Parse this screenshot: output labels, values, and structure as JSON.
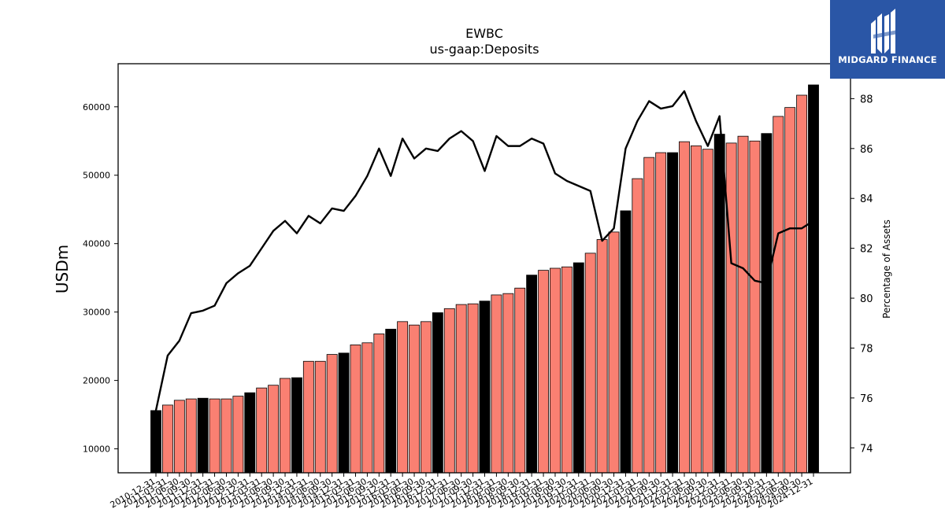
{
  "logo": {
    "text": "MIDGARD FINANCE",
    "color": "#2a56a6"
  },
  "chart_data": {
    "type": "bar",
    "title": "EWBC",
    "subtitle": "us-gaap:Deposits",
    "ylabel": "USDm",
    "y2label": "Percentage of Assets",
    "ylim": [
      6500,
      66300
    ],
    "y2lim": [
      73.0,
      89.4
    ],
    "yticks": [
      10000,
      20000,
      30000,
      40000,
      50000,
      60000
    ],
    "y2ticks": [
      74,
      76,
      78,
      80,
      82,
      84,
      86,
      88
    ],
    "colors": {
      "q4_bar": "#000000",
      "other_bar": "#fa8072",
      "line": "#000000"
    },
    "categories": [
      "2010-12-31",
      "2011-03-31",
      "2011-06-30",
      "2011-09-30",
      "2011-12-31",
      "2012-03-31",
      "2012-06-30",
      "2012-09-30",
      "2012-12-31",
      "2013-03-31",
      "2013-06-30",
      "2013-09-30",
      "2013-12-31",
      "2014-03-31",
      "2014-06-30",
      "2014-09-30",
      "2014-12-31",
      "2015-03-31",
      "2015-06-30",
      "2015-09-30",
      "2015-12-31",
      "2016-03-31",
      "2016-06-30",
      "2016-09-30",
      "2016-12-31",
      "2017-03-31",
      "2017-06-30",
      "2017-09-30",
      "2017-12-31",
      "2018-03-31",
      "2018-06-30",
      "2018-09-30",
      "2018-12-31",
      "2019-03-31",
      "2019-06-30",
      "2019-09-30",
      "2019-12-31",
      "2020-03-31",
      "2020-06-30",
      "2020-09-30",
      "2020-12-31",
      "2021-03-31",
      "2021-06-30",
      "2021-09-30",
      "2021-12-31",
      "2022-03-31",
      "2022-06-30",
      "2022-09-30",
      "2022-12-31",
      "2023-03-31",
      "2023-06-30",
      "2023-09-30",
      "2023-12-31",
      "2024-03-31",
      "2024-06-30",
      "2024-09-30",
      "2024-12-31"
    ],
    "series": [
      {
        "kind": "bar",
        "values": [
          15600,
          16400,
          17100,
          17300,
          17400,
          17300,
          17300,
          17700,
          18200,
          18900,
          19300,
          20300,
          20400,
          22800,
          22800,
          23800,
          24000,
          25200,
          25500,
          26800,
          27500,
          28600,
          28100,
          28600,
          29900,
          30500,
          31100,
          31200,
          31600,
          32500,
          32700,
          33500,
          35400,
          36100,
          36400,
          36600,
          37200,
          38600,
          40600,
          41700,
          44800,
          49500,
          52600,
          53300,
          53300,
          54900,
          54300,
          53800,
          56000,
          54700,
          55700,
          55000,
          56100,
          58600,
          59900,
          61700,
          63200
        ]
      },
      {
        "kind": "line",
        "axis": "right",
        "values": [
          75.5,
          77.7,
          78.3,
          79.4,
          79.5,
          79.7,
          80.6,
          81.0,
          81.3,
          82.0,
          82.7,
          83.1,
          82.6,
          83.3,
          83.0,
          83.6,
          83.5,
          84.1,
          84.9,
          86.0,
          84.9,
          86.4,
          85.6,
          86.0,
          85.9,
          86.4,
          86.7,
          86.3,
          85.1,
          86.5,
          86.1,
          86.1,
          86.4,
          86.2,
          85.0,
          84.7,
          84.5,
          84.3,
          82.3,
          82.8,
          86.0,
          87.1,
          87.9,
          87.6,
          87.7,
          88.3,
          87.1,
          86.1,
          87.3,
          81.4,
          81.2,
          80.7,
          80.6,
          82.6,
          82.8,
          82.8,
          83.1
        ]
      }
    ]
  }
}
